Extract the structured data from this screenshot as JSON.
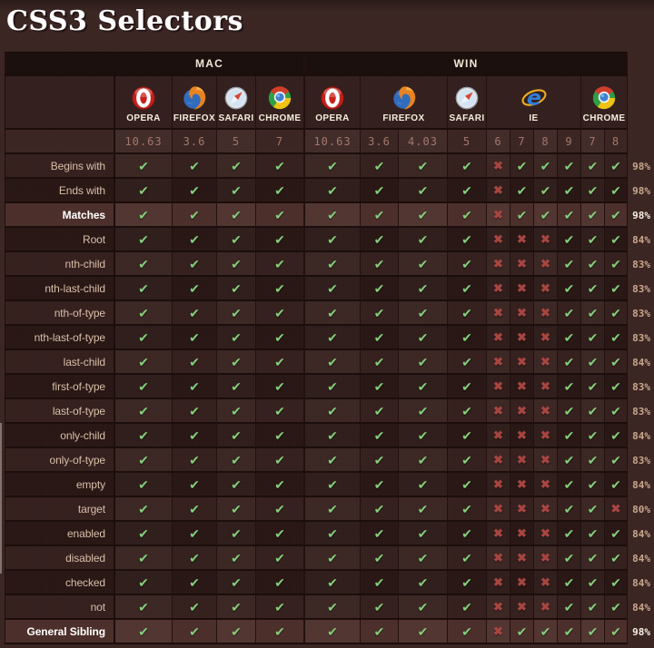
{
  "page": {
    "title": "CSS3 Selectors"
  },
  "colors": {
    "background": "#3a2522",
    "header_bar": "#190e0c",
    "row_light": "#341f1d",
    "row_dark": "#281614",
    "row_highlight": "#4b2e2a",
    "check_green": "#85cd7a",
    "cross_red": "#a64440",
    "label_text": "#d9bfa8",
    "version_text": "#a3766a",
    "percent_text": "#c8a78c"
  },
  "marks": {
    "check": "✔",
    "cross": "✖"
  },
  "table": {
    "platform_groups": [
      {
        "label": "MAC",
        "cols": 4
      },
      {
        "label": "WIN",
        "cols": 10
      }
    ],
    "browsers": [
      {
        "name": "OPERA",
        "icon": "opera-icon",
        "cols": 1
      },
      {
        "name": "FIREFOX",
        "icon": "firefox-icon",
        "cols": 1
      },
      {
        "name": "SAFARI",
        "icon": "safari-icon",
        "cols": 1
      },
      {
        "name": "CHROME",
        "icon": "chrome-icon",
        "cols": 1
      },
      {
        "name": "OPERA",
        "icon": "opera-icon",
        "cols": 1
      },
      {
        "name": "FIREFOX",
        "icon": "firefox-icon",
        "cols": 2
      },
      {
        "name": "SAFARI",
        "icon": "safari-icon",
        "cols": 1
      },
      {
        "name": "IE",
        "icon": "ie-icon",
        "cols": 4
      },
      {
        "name": "CHROME",
        "icon": "chrome-icon",
        "cols": 2
      }
    ],
    "versions": [
      "10.63",
      "3.6",
      "5",
      "7",
      "10.63",
      "3.6",
      "4.03",
      "5",
      "6",
      "7",
      "8",
      "9",
      "7",
      "8"
    ],
    "rows": [
      {
        "label": "Begins with",
        "support": [
          1,
          1,
          1,
          1,
          1,
          1,
          1,
          1,
          0,
          1,
          1,
          1,
          1,
          1
        ],
        "percent": "98%",
        "highlight": false
      },
      {
        "label": "Ends with",
        "support": [
          1,
          1,
          1,
          1,
          1,
          1,
          1,
          1,
          0,
          1,
          1,
          1,
          1,
          1
        ],
        "percent": "98%",
        "highlight": false
      },
      {
        "label": "Matches",
        "support": [
          1,
          1,
          1,
          1,
          1,
          1,
          1,
          1,
          0,
          1,
          1,
          1,
          1,
          1
        ],
        "percent": "98%",
        "highlight": true
      },
      {
        "label": "Root",
        "support": [
          1,
          1,
          1,
          1,
          1,
          1,
          1,
          1,
          0,
          0,
          0,
          1,
          1,
          1
        ],
        "percent": "84%",
        "highlight": false
      },
      {
        "label": "nth-child",
        "support": [
          1,
          1,
          1,
          1,
          1,
          1,
          1,
          1,
          0,
          0,
          0,
          1,
          1,
          1
        ],
        "percent": "83%",
        "highlight": false
      },
      {
        "label": "nth-last-child",
        "support": [
          1,
          1,
          1,
          1,
          1,
          1,
          1,
          1,
          0,
          0,
          0,
          1,
          1,
          1
        ],
        "percent": "83%",
        "highlight": false
      },
      {
        "label": "nth-of-type",
        "support": [
          1,
          1,
          1,
          1,
          1,
          1,
          1,
          1,
          0,
          0,
          0,
          1,
          1,
          1
        ],
        "percent": "83%",
        "highlight": false
      },
      {
        "label": "nth-last-of-type",
        "support": [
          1,
          1,
          1,
          1,
          1,
          1,
          1,
          1,
          0,
          0,
          0,
          1,
          1,
          1
        ],
        "percent": "83%",
        "highlight": false
      },
      {
        "label": "last-child",
        "support": [
          1,
          1,
          1,
          1,
          1,
          1,
          1,
          1,
          0,
          0,
          0,
          1,
          1,
          1
        ],
        "percent": "84%",
        "highlight": false
      },
      {
        "label": "first-of-type",
        "support": [
          1,
          1,
          1,
          1,
          1,
          1,
          1,
          1,
          0,
          0,
          0,
          1,
          1,
          1
        ],
        "percent": "83%",
        "highlight": false
      },
      {
        "label": "last-of-type",
        "support": [
          1,
          1,
          1,
          1,
          1,
          1,
          1,
          1,
          0,
          0,
          0,
          1,
          1,
          1
        ],
        "percent": "83%",
        "highlight": false
      },
      {
        "label": "only-child",
        "support": [
          1,
          1,
          1,
          1,
          1,
          1,
          1,
          1,
          0,
          0,
          0,
          1,
          1,
          1
        ],
        "percent": "84%",
        "highlight": false
      },
      {
        "label": "only-of-type",
        "support": [
          1,
          1,
          1,
          1,
          1,
          1,
          1,
          1,
          0,
          0,
          0,
          1,
          1,
          1
        ],
        "percent": "83%",
        "highlight": false
      },
      {
        "label": "empty",
        "support": [
          1,
          1,
          1,
          1,
          1,
          1,
          1,
          1,
          0,
          0,
          0,
          1,
          1,
          1
        ],
        "percent": "84%",
        "highlight": false
      },
      {
        "label": "target",
        "support": [
          1,
          1,
          1,
          1,
          1,
          1,
          1,
          1,
          0,
          0,
          0,
          1,
          1,
          0
        ],
        "percent": "80%",
        "highlight": false
      },
      {
        "label": "enabled",
        "support": [
          1,
          1,
          1,
          1,
          1,
          1,
          1,
          1,
          0,
          0,
          0,
          1,
          1,
          1
        ],
        "percent": "84%",
        "highlight": false
      },
      {
        "label": "disabled",
        "support": [
          1,
          1,
          1,
          1,
          1,
          1,
          1,
          1,
          0,
          0,
          0,
          1,
          1,
          1
        ],
        "percent": "84%",
        "highlight": false
      },
      {
        "label": "checked",
        "support": [
          1,
          1,
          1,
          1,
          1,
          1,
          1,
          1,
          0,
          0,
          0,
          1,
          1,
          1
        ],
        "percent": "84%",
        "highlight": false
      },
      {
        "label": "not",
        "support": [
          1,
          1,
          1,
          1,
          1,
          1,
          1,
          1,
          0,
          0,
          0,
          1,
          1,
          1
        ],
        "percent": "84%",
        "highlight": false
      },
      {
        "label": "General Sibling",
        "support": [
          1,
          1,
          1,
          1,
          1,
          1,
          1,
          1,
          0,
          1,
          1,
          1,
          1,
          1
        ],
        "percent": "98%",
        "highlight": true
      }
    ]
  }
}
